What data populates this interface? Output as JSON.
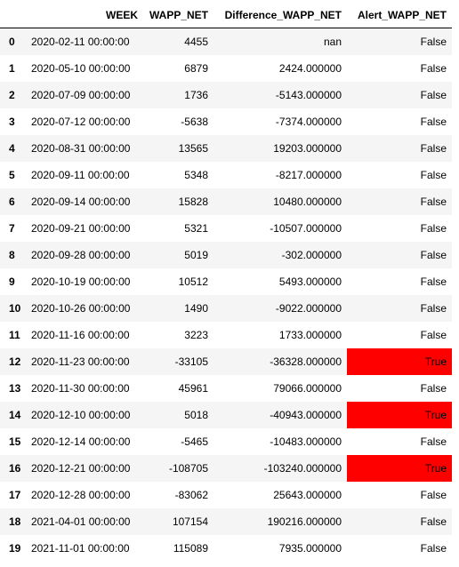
{
  "table": {
    "columns": [
      "",
      "WEEK",
      "WAPP_NET",
      "Difference_WAPP_NET",
      "Alert_WAPP_NET"
    ],
    "highlight_color": "#ff0000",
    "rows": [
      {
        "index": "0",
        "week": "2020-02-11 00:00:00",
        "wapp_net": "4455",
        "difference": "nan",
        "alert": "False"
      },
      {
        "index": "1",
        "week": "2020-05-10 00:00:00",
        "wapp_net": "6879",
        "difference": "2424.000000",
        "alert": "False"
      },
      {
        "index": "2",
        "week": "2020-07-09 00:00:00",
        "wapp_net": "1736",
        "difference": "-5143.000000",
        "alert": "False"
      },
      {
        "index": "3",
        "week": "2020-07-12 00:00:00",
        "wapp_net": "-5638",
        "difference": "-7374.000000",
        "alert": "False"
      },
      {
        "index": "4",
        "week": "2020-08-31 00:00:00",
        "wapp_net": "13565",
        "difference": "19203.000000",
        "alert": "False"
      },
      {
        "index": "5",
        "week": "2020-09-11 00:00:00",
        "wapp_net": "5348",
        "difference": "-8217.000000",
        "alert": "False"
      },
      {
        "index": "6",
        "week": "2020-09-14 00:00:00",
        "wapp_net": "15828",
        "difference": "10480.000000",
        "alert": "False"
      },
      {
        "index": "7",
        "week": "2020-09-21 00:00:00",
        "wapp_net": "5321",
        "difference": "-10507.000000",
        "alert": "False"
      },
      {
        "index": "8",
        "week": "2020-09-28 00:00:00",
        "wapp_net": "5019",
        "difference": "-302.000000",
        "alert": "False"
      },
      {
        "index": "9",
        "week": "2020-10-19 00:00:00",
        "wapp_net": "10512",
        "difference": "5493.000000",
        "alert": "False"
      },
      {
        "index": "10",
        "week": "2020-10-26 00:00:00",
        "wapp_net": "1490",
        "difference": "-9022.000000",
        "alert": "False"
      },
      {
        "index": "11",
        "week": "2020-11-16 00:00:00",
        "wapp_net": "3223",
        "difference": "1733.000000",
        "alert": "False"
      },
      {
        "index": "12",
        "week": "2020-11-23 00:00:00",
        "wapp_net": "-33105",
        "difference": "-36328.000000",
        "alert": "True"
      },
      {
        "index": "13",
        "week": "2020-11-30 00:00:00",
        "wapp_net": "45961",
        "difference": "79066.000000",
        "alert": "False"
      },
      {
        "index": "14",
        "week": "2020-12-10 00:00:00",
        "wapp_net": "5018",
        "difference": "-40943.000000",
        "alert": "True"
      },
      {
        "index": "15",
        "week": "2020-12-14 00:00:00",
        "wapp_net": "-5465",
        "difference": "-10483.000000",
        "alert": "False"
      },
      {
        "index": "16",
        "week": "2020-12-21 00:00:00",
        "wapp_net": "-108705",
        "difference": "-103240.000000",
        "alert": "True"
      },
      {
        "index": "17",
        "week": "2020-12-28 00:00:00",
        "wapp_net": "-83062",
        "difference": "25643.000000",
        "alert": "False"
      },
      {
        "index": "18",
        "week": "2021-04-01 00:00:00",
        "wapp_net": "107154",
        "difference": "190216.000000",
        "alert": "False"
      },
      {
        "index": "19",
        "week": "2021-11-01 00:00:00",
        "wapp_net": "115089",
        "difference": "7935.000000",
        "alert": "False"
      }
    ]
  }
}
